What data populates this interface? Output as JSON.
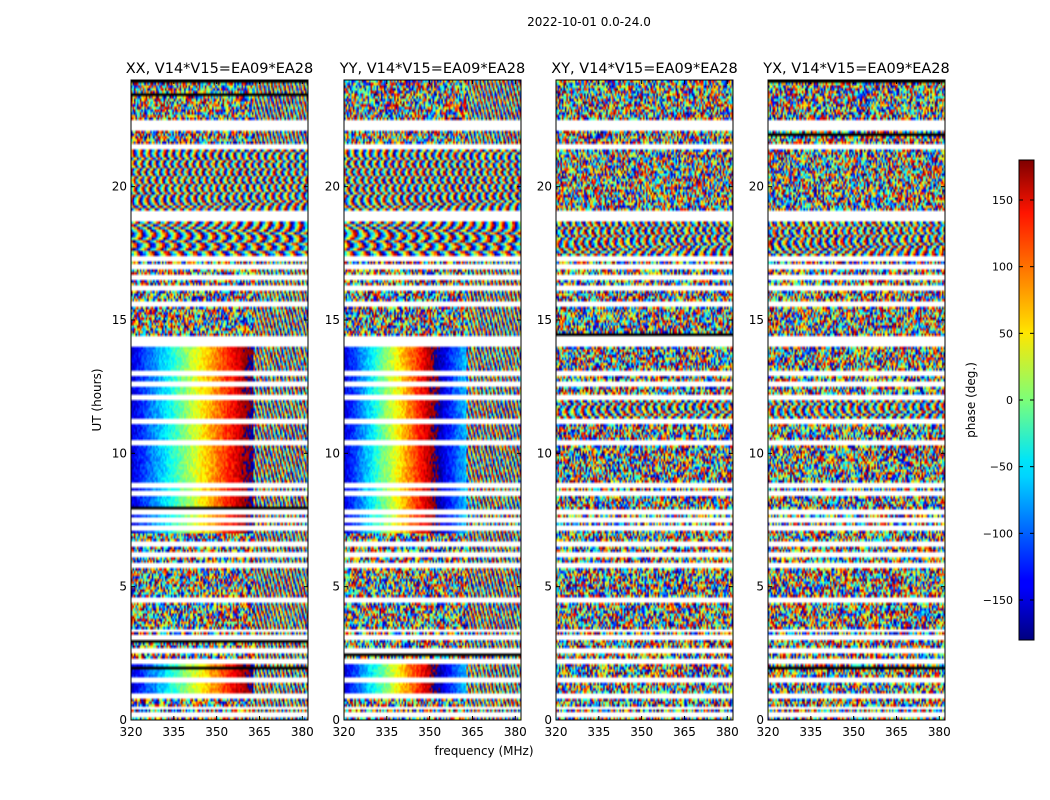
{
  "suptitle": "2022-10-01 0.0-24.0",
  "chart_data": {
    "type": "heatmap",
    "x_unit_label": "frequency (MHz)",
    "y_label": "UT (hours)",
    "xlim": [
      320,
      382
    ],
    "ylim": [
      0,
      24
    ],
    "x_ticks": [
      320,
      335,
      350,
      365,
      380
    ],
    "y_ticks": [
      0,
      5,
      10,
      15,
      20
    ],
    "colormap": "jet",
    "colorbar": {
      "label": "phase (deg.)",
      "range": [
        -180,
        180
      ],
      "ticks": [
        -150,
        -100,
        -50,
        0,
        50,
        100,
        150
      ]
    },
    "panels": [
      {
        "title": "XX, V14*V15=EA09*EA28",
        "pattern": "parallel",
        "phase_slope_deg_per_mhz": 8.0
      },
      {
        "title": "YY, V14*V15=EA09*EA28",
        "pattern": "parallel",
        "phase_slope_deg_per_mhz": 8.0
      },
      {
        "title": "XY, V14*V15=EA09*EA28",
        "pattern": "cross"
      },
      {
        "title": "YX, V14*V15=EA09*EA28",
        "pattern": "cross"
      }
    ],
    "flagged_ut_hours": [
      0.2,
      0.45,
      0.9,
      1.5,
      2.2,
      2.6,
      3.1,
      3.35,
      4.5,
      5.8,
      6.2,
      6.6,
      7.2,
      7.5,
      7.8,
      8.5,
      8.8,
      10.4,
      11.2,
      12.1,
      12.6,
      13.0,
      14.1,
      14.3,
      15.6,
      16.2,
      16.6,
      17.0,
      17.3,
      18.8,
      19.0,
      21.5,
      22.2,
      22.4
    ],
    "rfi_band_mhz": [
      363,
      382
    ]
  }
}
